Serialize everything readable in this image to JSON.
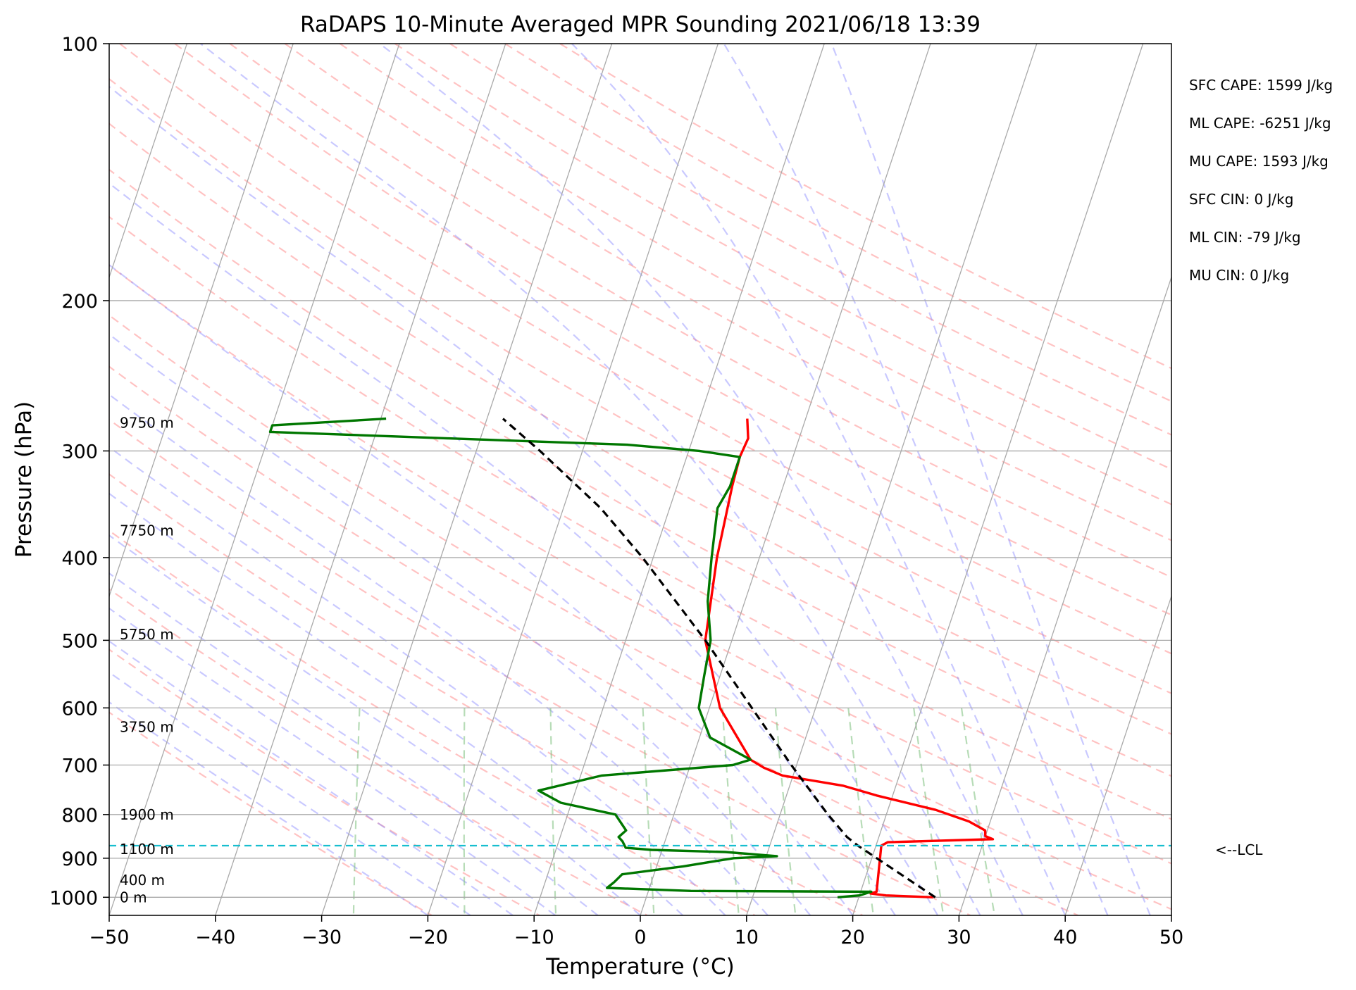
{
  "chart_data": {
    "type": "line",
    "subtype": "skew-T log-P sounding",
    "title": "RaDAPS 10-Minute Averaged MPR Sounding 2021/06/18 13:39",
    "xlabel": "Temperature (°C)",
    "ylabel": "Pressure (hPa)",
    "xlim": [
      -50,
      50
    ],
    "ylim": [
      1050,
      100
    ],
    "yscale": "log",
    "x_ticks": [
      "−50",
      "−40",
      "−30",
      "−20",
      "−10",
      "0",
      "10",
      "20",
      "30",
      "40",
      "50"
    ],
    "y_ticks": [
      "100",
      "200",
      "300",
      "400",
      "500",
      "600",
      "700",
      "800",
      "900",
      "1000"
    ],
    "grid": true,
    "series": [
      {
        "name": "temperature",
        "color": "#ff0000",
        "points": [
          [
            1000,
            27.0
          ],
          [
            995,
            22.5
          ],
          [
            990,
            21.0
          ],
          [
            985,
            21.5
          ],
          [
            870,
            20.5
          ],
          [
            862,
            21.0
          ],
          [
            855,
            30.8
          ],
          [
            848,
            30.0
          ],
          [
            835,
            29.8
          ],
          [
            815,
            28.0
          ],
          [
            790,
            24.5
          ],
          [
            760,
            18.5
          ],
          [
            740,
            15.0
          ],
          [
            720,
            9.0
          ],
          [
            705,
            7.0
          ],
          [
            690,
            5.5
          ],
          [
            600,
            1.0
          ],
          [
            500,
            -2.5
          ],
          [
            400,
            -4.0
          ],
          [
            330,
            -4.8
          ],
          [
            305,
            -5.0
          ],
          [
            290,
            -4.8
          ],
          [
            275,
            -5.5
          ]
        ]
      },
      {
        "name": "dewpoint",
        "color": "#007700",
        "points": [
          [
            1000,
            18.0
          ],
          [
            995,
            20.0
          ],
          [
            985,
            21.0
          ],
          [
            983,
            4.0
          ],
          [
            975,
            -4.0
          ],
          [
            960,
            -3.5
          ],
          [
            940,
            -3.0
          ],
          [
            920,
            2.5
          ],
          [
            900,
            7.0
          ],
          [
            895,
            11.0
          ],
          [
            885,
            6.0
          ],
          [
            880,
            -1.0
          ],
          [
            875,
            -3.5
          ],
          [
            860,
            -4.0
          ],
          [
            850,
            -4.5
          ],
          [
            835,
            -4.0
          ],
          [
            800,
            -5.5
          ],
          [
            775,
            -11.0
          ],
          [
            750,
            -13.5
          ],
          [
            720,
            -8.0
          ],
          [
            700,
            4.0
          ],
          [
            690,
            5.5
          ],
          [
            650,
            1.0
          ],
          [
            600,
            -1.0
          ],
          [
            550,
            -1.5
          ],
          [
            500,
            -2.0
          ],
          [
            450,
            -3.5
          ],
          [
            400,
            -4.5
          ],
          [
            350,
            -5.5
          ],
          [
            330,
            -5.0
          ],
          [
            305,
            -5.0
          ],
          [
            300,
            -9.0
          ],
          [
            295,
            -16.0
          ],
          [
            290,
            -33.0
          ],
          [
            285,
            -50.0
          ],
          [
            280,
            -50.0
          ],
          [
            275,
            -39.5
          ]
        ]
      },
      {
        "name": "parcel profile",
        "color": "#000000",
        "points": [
          [
            1000,
            27.2
          ],
          [
            870,
            18.3
          ],
          [
            850,
            17.0
          ],
          [
            800,
            14.5
          ],
          [
            700,
            9.5
          ],
          [
            600,
            4.0
          ],
          [
            500,
            -2.5
          ],
          [
            400,
            -11.0
          ],
          [
            350,
            -16.5
          ],
          [
            300,
            -24.0
          ],
          [
            275,
            -28.5
          ]
        ]
      }
    ],
    "altitude_labels": [
      {
        "text": "0 m",
        "pressure": 1000
      },
      {
        "text": "400 m",
        "pressure": 955
      },
      {
        "text": "1100 m",
        "pressure": 878
      },
      {
        "text": "1900 m",
        "pressure": 800
      },
      {
        "text": "3750 m",
        "pressure": 632
      },
      {
        "text": "5750 m",
        "pressure": 492
      },
      {
        "text": "7750 m",
        "pressure": 372
      },
      {
        "text": "9750 m",
        "pressure": 278
      }
    ],
    "lcl": {
      "pressure": 870,
      "label": "<--LCL"
    },
    "stats": [
      "SFC CAPE: 1599 J/kg",
      "ML CAPE: -6251 J/kg",
      "MU CAPE: 1593 J/kg",
      "SFC CIN: 0 J/kg",
      "ML CIN: -79 J/kg",
      "MU CIN: 0 J/kg"
    ]
  },
  "colors": {
    "temperature": "#ff0000",
    "dewpoint": "#007700",
    "parcel": "#000000",
    "isotherms": "#a9a9a9",
    "dry_adiabats": "#ff9090",
    "moist_adiabats": "#8888ff",
    "mixing_ratio": "#7cc07c",
    "lcl_line": "#17becf"
  }
}
